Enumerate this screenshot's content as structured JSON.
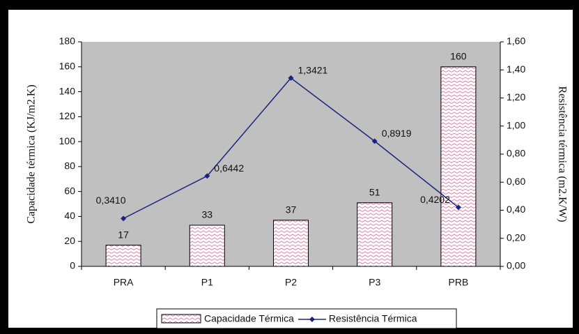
{
  "chart_data": {
    "type": "combo",
    "categories": [
      "PRA",
      "P1",
      "P2",
      "P3",
      "PRB"
    ],
    "series": [
      {
        "name": "Capacidade Térmica",
        "type": "bar",
        "color": "#e080a8",
        "values": [
          17,
          33,
          37,
          51,
          160
        ]
      },
      {
        "name": "Resistência Térmica",
        "type": "line",
        "axis": "y2",
        "color": "#1a237e",
        "values": [
          0.341,
          0.6442,
          1.3421,
          0.8919,
          0.4202
        ],
        "value_labels": [
          "0,3410",
          "0,6442",
          "1,3421",
          "0,8919",
          "0,4202"
        ]
      }
    ],
    "ylabel": "Capacidade térmica (KJ/m2.K)",
    "y2label": "Resistência térmica (m2.K/W)",
    "ylim": [
      0,
      180
    ],
    "yticks": [
      0,
      20,
      40,
      60,
      80,
      100,
      120,
      140,
      160,
      180
    ],
    "y2lim": [
      0,
      1.6
    ],
    "y2ticks": [
      {
        "value": 0,
        "label": "0,00"
      },
      {
        "value": 0.2,
        "label": "0,20"
      },
      {
        "value": 0.4,
        "label": "0,40"
      },
      {
        "value": 0.6,
        "label": "0,60"
      },
      {
        "value": 0.8,
        "label": "0,80"
      },
      {
        "value": 1.0,
        "label": "1,00"
      },
      {
        "value": 1.2,
        "label": "1,20"
      },
      {
        "value": 1.4,
        "label": "1,40"
      },
      {
        "value": 1.6,
        "label": "1,60"
      }
    ],
    "plot_background": "#c0c0c0",
    "legend": "bottom"
  }
}
